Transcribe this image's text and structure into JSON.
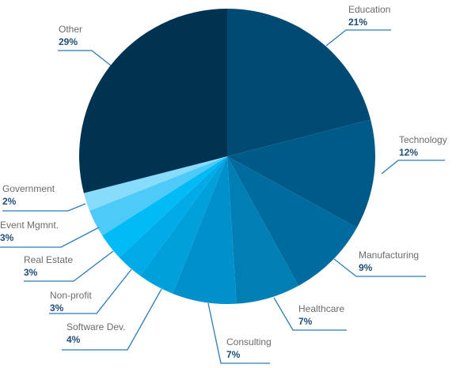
{
  "chart_data": {
    "type": "pie",
    "title": "",
    "start_angle": "12 o'clock, clockwise",
    "categories": [
      "Education",
      "Technology",
      "Manufacturing",
      "Healthcare",
      "Consulting",
      "Software Dev.",
      "Non-profit",
      "Real Estate",
      "Event Mgmnt.",
      "Government",
      "Other"
    ],
    "values": [
      21,
      12,
      9,
      7,
      7,
      4,
      3,
      3,
      3,
      2,
      29
    ],
    "labels": [
      "21%",
      "12%",
      "9%",
      "7%",
      "7%",
      "4%",
      "3%",
      "3%",
      "3%",
      "2%",
      "29%"
    ],
    "colors": [
      "#004a73",
      "#005a88",
      "#006b9f",
      "#007fb4",
      "#0090cc",
      "#00a0dc",
      "#00abe8",
      "#00bbf5",
      "#4dcaf7",
      "#87dbfb",
      "#003352"
    ],
    "legend": "none (callout labels)"
  },
  "slices": [
    {
      "name": "Education",
      "pct": "21%"
    },
    {
      "name": "Technology",
      "pct": "12%"
    },
    {
      "name": "Manufacturing",
      "pct": "9%"
    },
    {
      "name": "Healthcare",
      "pct": "7%"
    },
    {
      "name": "Consulting",
      "pct": "7%"
    },
    {
      "name": "Software Dev.",
      "pct": "4%"
    },
    {
      "name": "Non-profit",
      "pct": "3%"
    },
    {
      "name": "Real Estate",
      "pct": "3%"
    },
    {
      "name": "Event Mgmnt.",
      "pct": "3%"
    },
    {
      "name": "Government",
      "pct": "2%"
    },
    {
      "name": "Other",
      "pct": "29%"
    }
  ],
  "line_color": "#2b7bb9"
}
